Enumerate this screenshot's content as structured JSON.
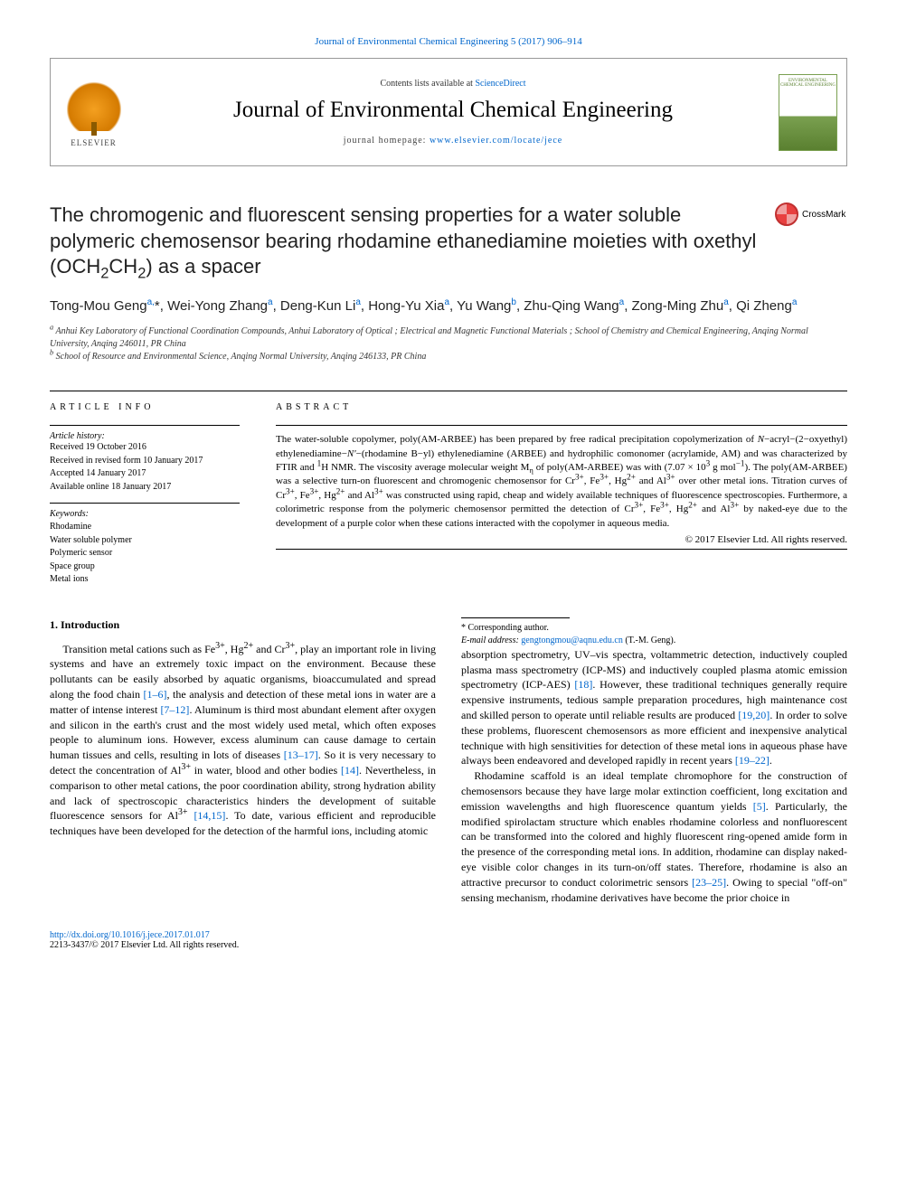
{
  "colors": {
    "link": "#0066cc",
    "text": "#000000",
    "elsevier_orange": "#f4a020",
    "cover_green": "#7aa050",
    "crossmark_red": "#e84040"
  },
  "typography": {
    "body_font": "Georgia, serif",
    "heading_font": "Arial, sans-serif",
    "title_fontsize": 22,
    "journal_fontsize": 25,
    "body_fontsize": 12,
    "abstract_fontsize": 11,
    "small_fontsize": 10
  },
  "topLink": {
    "prefix": "Journal of Environmental Chemical Engineering 5 (2017) 906–914"
  },
  "header": {
    "contents_prefix": "Contents lists available at ",
    "contents_link": "ScienceDirect",
    "journal_name": "Journal of Environmental Chemical Engineering",
    "homepage_prefix": "journal homepage: ",
    "homepage_url": "www.elsevier.com/locate/jece",
    "publisher_label": "ELSEVIER",
    "cover_caption": "ENVIRONMENTAL CHEMICAL ENGINEERING"
  },
  "crossmark_label": "CrossMark",
  "title_html": "The chromogenic and fluorescent sensing properties for a water soluble polymeric chemosensor bearing rhodamine ethanediamine moieties with oxethyl (OCH<sub>2</sub>CH<sub>2</sub>) as a spacer",
  "authors_html": "Tong-Mou Geng<sup class=\"aff-link\">a,</sup>*, Wei-Yong Zhang<sup class=\"aff-link\">a</sup>, Deng-Kun Li<sup class=\"aff-link\">a</sup>, Hong-Yu Xia<sup class=\"aff-link\">a</sup>, Yu Wang<sup class=\"aff-link\">b</sup>, Zhu-Qing Wang<sup class=\"aff-link\">a</sup>, Zong-Ming Zhu<sup class=\"aff-link\">a</sup>, Qi Zheng<sup class=\"aff-link\">a</sup>",
  "affiliations": {
    "a": "Anhui Key Laboratory of Functional Coordination Compounds, Anhui Laboratory of Optical ; Electrical and Magnetic Functional Materials ; School of Chemistry and Chemical Engineering, Anqing Normal University, Anqing 246011, PR China",
    "b": "School of Resource and Environmental Science, Anqing Normal University, Anqing 246133, PR China"
  },
  "article_info": {
    "heading": "ARTICLE INFO",
    "history_label": "Article history:",
    "history": [
      "Received 19 October 2016",
      "Received in revised form 10 January 2017",
      "Accepted 14 January 2017",
      "Available online 18 January 2017"
    ],
    "keywords_label": "Keywords:",
    "keywords": [
      "Rhodamine",
      "Water soluble polymer",
      "Polymeric sensor",
      "Space group",
      "Metal ions"
    ]
  },
  "abstract": {
    "heading": "ABSTRACT",
    "text_html": "The water-soluble copolymer, poly(AM-ARBEE) has been prepared by free radical precipitation copolymerization of <i>N</i>−acryl−(2−oxyethyl) ethylenediamine−<i>N′</i>−(rhodamine B−yl) ethylenediamine (ARBEE) and hydrophilic comonomer (acrylamide, AM) and was characterized by FTIR and <sup>1</sup>H NMR. The viscosity average molecular weight M<sub>η</sub> of poly(AM-ARBEE) was with (7.07 × 10<sup>3</sup> g mol<sup>−1</sup>). The poly(AM-ARBEE) was a selective turn-on fluorescent and chromogenic chemosensor for Cr<sup>3+</sup>, Fe<sup>3+</sup>, Hg<sup>2+</sup> and Al<sup>3+</sup> over other metal ions. Titration curves of Cr<sup>3+</sup>, Fe<sup>3+</sup>, Hg<sup>2+</sup> and Al<sup>3+</sup> was constructed using rapid, cheap and widely available techniques of fluorescence spectroscopies. Furthermore, a colorimetric response from the polymeric chemosensor permitted the detection of Cr<sup>3+</sup>, Fe<sup>3+</sup>, Hg<sup>2+</sup> and Al<sup>3+</sup> by naked-eye due to the development of a purple color when these cations interacted with the copolymer in aqueous media.",
    "copyright": "© 2017 Elsevier Ltd. All rights reserved."
  },
  "body": {
    "section_heading": "1. Introduction",
    "para1_html": "Transition metal cations such as Fe<sup>3+</sup>, Hg<sup>2+</sup> and Cr<sup>3+</sup>, play an important role in living systems and have an extremely toxic impact on the environment. Because these pollutants can be easily absorbed by aquatic organisms, bioaccumulated and spread along the food chain <span class=\"ref-link\">[1–6]</span>, the analysis and detection of these metal ions in water are a matter of intense interest <span class=\"ref-link\">[7–12]</span>. Aluminum is third most abundant element after oxygen and silicon in the earth's crust and the most widely used metal, which often exposes people to aluminum ions. However, excess aluminum can cause damage to certain human tissues and cells, resulting in lots of diseases <span class=\"ref-link\">[13–17]</span>. So it is very necessary to detect the concentration of Al<sup>3+</sup> in water, blood and other bodies <span class=\"ref-link\">[14]</span>. Nevertheless, in comparison to other metal cations, the poor coordination ability, strong hydration ability and lack of spectroscopic characteristics hinders the development of suitable fluorescence sensors for Al<sup>3+</sup> <span class=\"ref-link\">[14,15]</span>. To date, various efficient and reproducible techniques have been developed for the detection of the harmful ions, including atomic",
    "para2_html": "absorption spectrometry, UV–vis spectra, voltammetric detection, inductively coupled plasma mass spectrometry (ICP-MS) and inductively coupled plasma atomic emission spectrometry (ICP-AES) <span class=\"ref-link\">[18]</span>. However, these traditional techniques generally require expensive instruments, tedious sample preparation procedures, high maintenance cost and skilled person to operate until reliable results are produced <span class=\"ref-link\">[19,20]</span>. In order to solve these problems, fluorescent chemosensors as more efficient and inexpensive analytical technique with high sensitivities for detection of these metal ions in aqueous phase have always been endeavored and developed rapidly in recent years <span class=\"ref-link\">[19–22]</span>.",
    "para3_html": "Rhodamine scaffold is an ideal template chromophore for the construction of chemosensors because they have large molar extinction coefficient, long excitation and emission wavelengths and high fluorescence quantum yields <span class=\"ref-link\">[5]</span>. Particularly, the modified spirolactam structure which enables rhodamine colorless and nonfluorescent can be transformed into the colored and highly fluorescent ring-opened amide form in the presence of the corresponding metal ions. In addition, rhodamine can display naked-eye visible color changes in its turn-on/off states. Therefore, rhodamine is also an attractive precursor to conduct colorimetric sensors <span class=\"ref-link\">[23–25]</span>. Owing to special \"off-on\" sensing mechanism, rhodamine derivatives have become the prior choice in"
  },
  "footer": {
    "corr_label": "* Corresponding author.",
    "email_label": "E-mail address:",
    "email": "gengtongmou@aqnu.edu.cn",
    "email_suffix": "(T.-M. Geng).",
    "doi": "http://dx.doi.org/10.1016/j.jece.2017.01.017",
    "issn_line": "2213-3437/© 2017 Elsevier Ltd. All rights reserved."
  }
}
